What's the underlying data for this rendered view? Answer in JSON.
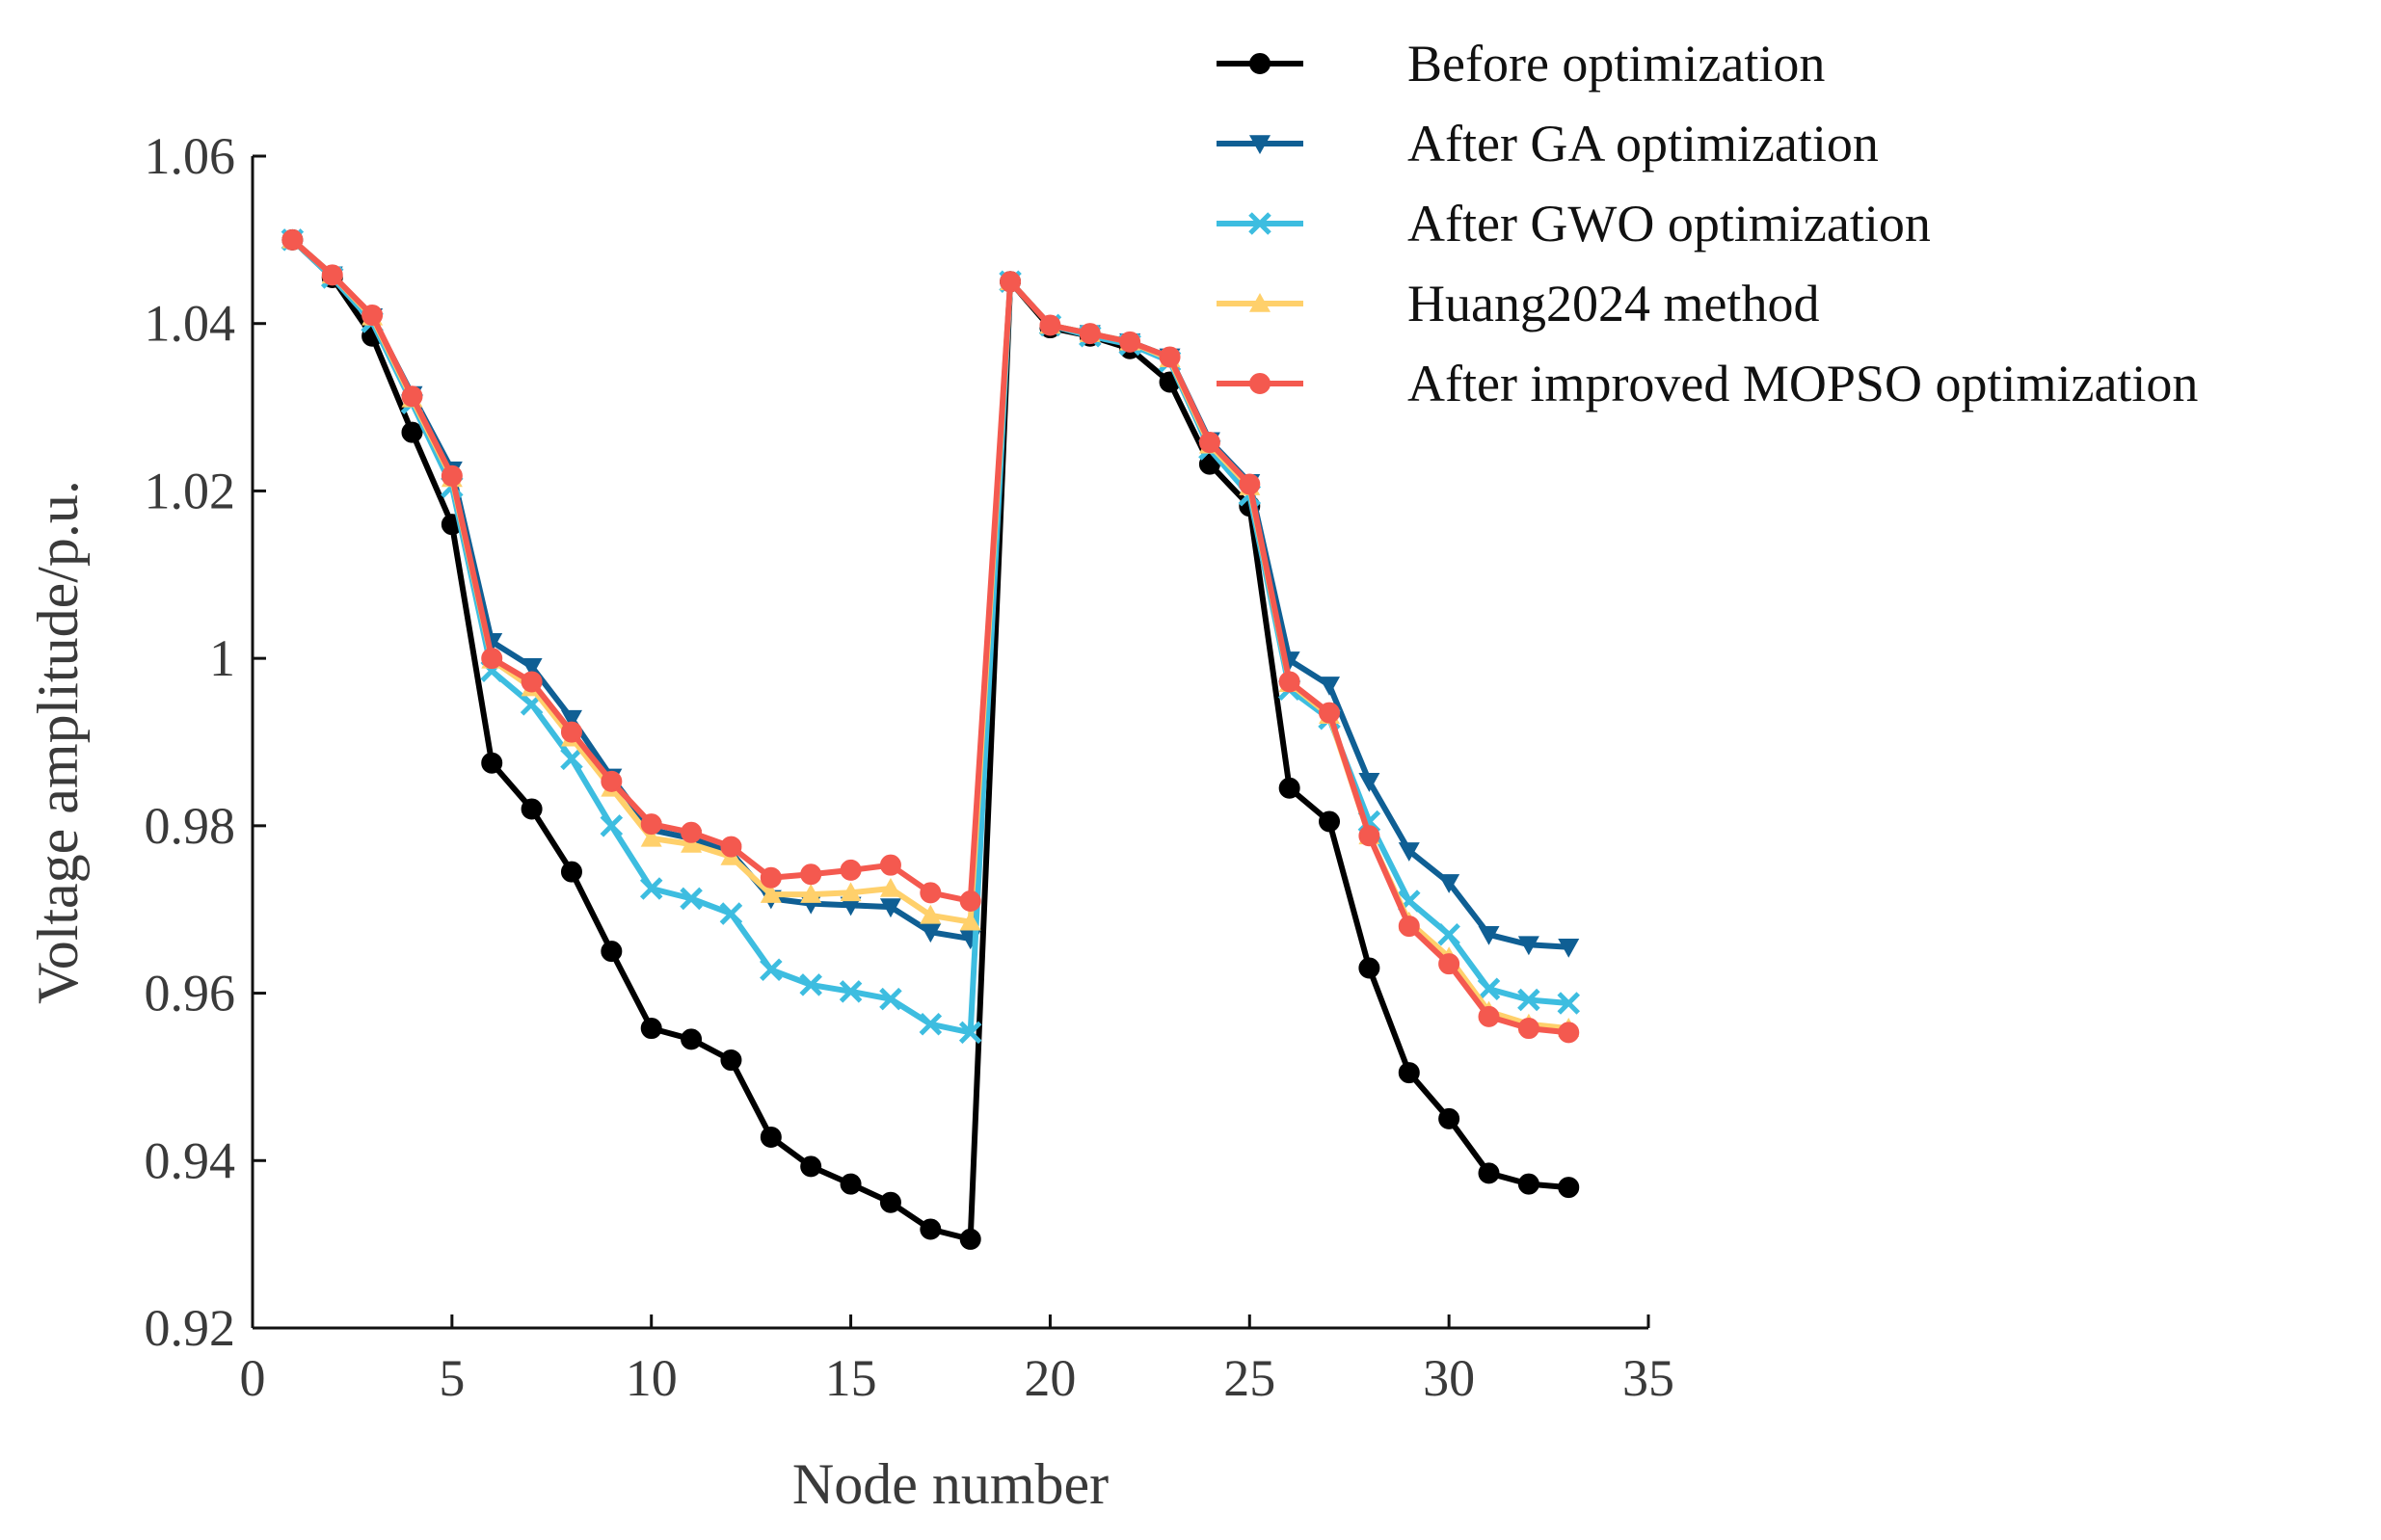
{
  "chart_data": {
    "type": "line",
    "title": "",
    "xlabel": "Node number",
    "ylabel": "Voltage amplitude/p.u.",
    "xlim": [
      0,
      35
    ],
    "ylim": [
      0.92,
      1.06
    ],
    "xticks": [
      0,
      5,
      10,
      15,
      20,
      25,
      30,
      35
    ],
    "xtick_labels": [
      "0",
      "5",
      "10",
      "15",
      "20",
      "25",
      "30",
      "35"
    ],
    "yticks": [
      0.92,
      0.94,
      0.96,
      0.98,
      1.0,
      1.02,
      1.04,
      1.06
    ],
    "ytick_labels": [
      "0.92",
      "0.94",
      "0.96",
      "0.98",
      "1",
      "1.02",
      "1.04",
      "1.06"
    ],
    "grid": false,
    "legend_position": "top-right",
    "x": [
      1,
      2,
      3,
      4,
      5,
      6,
      7,
      8,
      9,
      10,
      11,
      12,
      13,
      14,
      15,
      16,
      17,
      18,
      19,
      20,
      21,
      22,
      23,
      24,
      25,
      26,
      27,
      28,
      29,
      30,
      31,
      32,
      33
    ],
    "series": [
      {
        "name": "Before optimization",
        "color": "#000000",
        "marker": "circle",
        "values": [
          1.05,
          1.0455,
          1.0385,
          1.027,
          1.016,
          0.9875,
          0.982,
          0.9745,
          0.965,
          0.9558,
          0.9545,
          0.952,
          0.9428,
          0.9393,
          0.9372,
          0.935,
          0.9318,
          0.9306,
          1.045,
          1.0395,
          1.0385,
          1.037,
          1.033,
          1.0232,
          1.0182,
          0.9845,
          0.9805,
          0.963,
          0.9505,
          0.945,
          0.9385,
          0.9372,
          0.9368
        ]
      },
      {
        "name": "After GA optimization",
        "color": "#0f5f94",
        "marker": "triangle-down",
        "values": [
          1.05,
          1.0458,
          1.0408,
          1.0315,
          1.0225,
          1.002,
          0.999,
          0.9928,
          0.9858,
          0.9795,
          0.9785,
          0.9768,
          0.9713,
          0.9707,
          0.9705,
          0.9703,
          0.9673,
          0.9665,
          1.045,
          1.0398,
          1.0388,
          1.0378,
          1.036,
          1.026,
          1.021,
          0.9998,
          0.9968,
          0.9853,
          0.977,
          0.9732,
          0.967,
          0.9658,
          0.9655
        ]
      },
      {
        "name": "After GWO optimization",
        "color": "#3dbde0",
        "marker": "x",
        "values": [
          1.05,
          1.0455,
          1.0402,
          1.0305,
          1.0205,
          0.9985,
          0.9945,
          0.988,
          0.98,
          0.9725,
          0.9713,
          0.9695,
          0.9628,
          0.961,
          0.9602,
          0.9593,
          0.9563,
          0.9553,
          1.045,
          1.0398,
          1.0385,
          1.0375,
          1.0355,
          1.025,
          1.0195,
          0.9963,
          0.9928,
          0.9805,
          0.971,
          0.967,
          0.9605,
          0.9592,
          0.9588
        ]
      },
      {
        "name": "Huang2024 method",
        "color": "#ffd06b",
        "marker": "triangle-up",
        "values": [
          1.05,
          1.0458,
          1.0408,
          1.031,
          1.0215,
          0.9998,
          0.9965,
          0.9905,
          0.9845,
          0.9785,
          0.9778,
          0.9763,
          0.9718,
          0.9718,
          0.972,
          0.9725,
          0.9693,
          0.9685,
          1.045,
          1.0398,
          1.0388,
          1.0378,
          1.0358,
          1.0255,
          1.0205,
          0.997,
          0.9932,
          0.9788,
          0.9685,
          0.9643,
          0.9578,
          0.9563,
          0.9558
        ]
      },
      {
        "name": "After improved MOPSO optimization",
        "color": "#f4594f",
        "marker": "circle",
        "values": [
          1.05,
          1.0458,
          1.041,
          1.0313,
          1.0218,
          1.0,
          0.9972,
          0.9912,
          0.9853,
          0.9802,
          0.9792,
          0.9775,
          0.9738,
          0.9742,
          0.9747,
          0.9753,
          0.972,
          0.971,
          1.045,
          1.0398,
          1.0388,
          1.0378,
          1.036,
          1.0258,
          1.0208,
          0.9972,
          0.9935,
          0.9788,
          0.968,
          0.9635,
          0.9572,
          0.9558,
          0.9553
        ]
      }
    ]
  }
}
